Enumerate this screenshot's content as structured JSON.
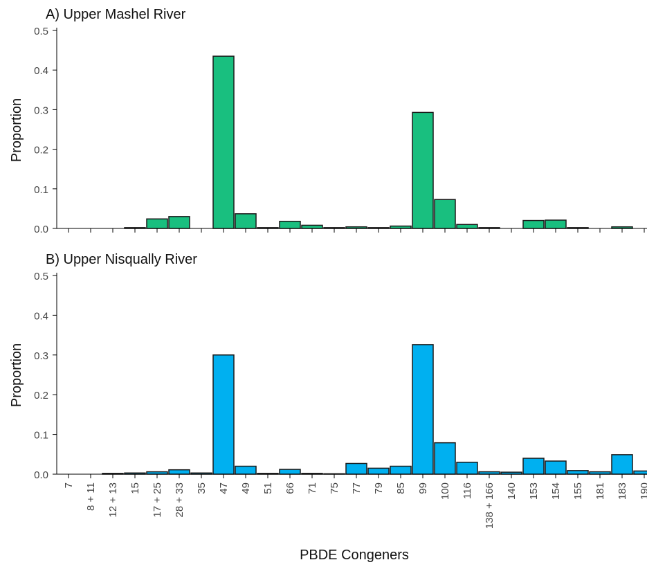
{
  "chart_data": [
    {
      "type": "bar",
      "title": "A) Upper Mashel River",
      "xlabel": "",
      "ylabel": "Proportion",
      "ylim": [
        0,
        0.5
      ],
      "yticks": [
        "0.0",
        "0.1",
        "0.2",
        "0.3",
        "0.4",
        "0.5"
      ],
      "categories": [
        "7",
        "8 + 11",
        "12 + 13",
        "15",
        "17 + 25",
        "28 + 33",
        "35",
        "47",
        "49",
        "51",
        "66",
        "71",
        "75",
        "77",
        "79",
        "85",
        "99",
        "100",
        "116",
        "138 + 166",
        "140",
        "153",
        "154",
        "155",
        "181",
        "183",
        "190"
      ],
      "values": [
        0,
        0,
        0,
        0.002,
        0.024,
        0.03,
        0,
        0.435,
        0.037,
        0.002,
        0.018,
        0.008,
        0.002,
        0.004,
        0.002,
        0.006,
        0.293,
        0.073,
        0.01,
        0.002,
        0,
        0.02,
        0.021,
        0.002,
        0,
        0.004,
        0
      ],
      "color": "#19bf7f",
      "show_tick_labels": false
    },
    {
      "type": "bar",
      "title": "B) Upper Nisqually River",
      "xlabel": "PBDE Congeners",
      "ylabel": "Proportion",
      "ylim": [
        0,
        0.5
      ],
      "yticks": [
        "0.0",
        "0.1",
        "0.2",
        "0.3",
        "0.4",
        "0.5"
      ],
      "categories": [
        "7",
        "8 + 11",
        "12 + 13",
        "15",
        "17 + 25",
        "28 + 33",
        "35",
        "47",
        "49",
        "51",
        "66",
        "71",
        "75",
        "77",
        "79",
        "85",
        "99",
        "100",
        "116",
        "138 + 166",
        "140",
        "153",
        "154",
        "155",
        "181",
        "183",
        "190"
      ],
      "values": [
        0,
        0,
        0.002,
        0.003,
        0.006,
        0.011,
        0.003,
        0.3,
        0.02,
        0.002,
        0.012,
        0.002,
        0.001,
        0.027,
        0.015,
        0.02,
        0.326,
        0.079,
        0.03,
        0.006,
        0.005,
        0.04,
        0.033,
        0.009,
        0.006,
        0.049,
        0.008
      ],
      "color": "#00b0f0",
      "show_tick_labels": true
    }
  ]
}
